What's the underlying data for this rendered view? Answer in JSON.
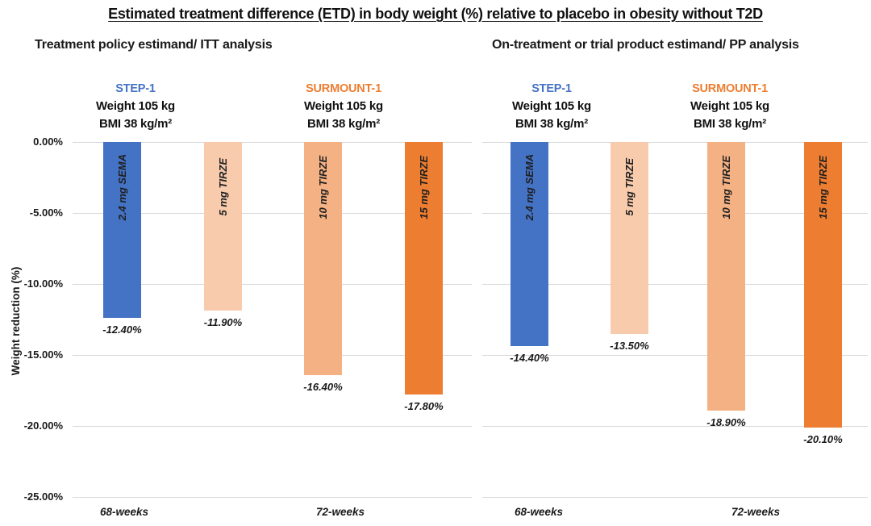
{
  "title": "Estimated treatment difference (ETD) in body weight (%) relative to placebo in obesity without T2D",
  "colors": {
    "step1_blue": "#4472C4",
    "surmount_orange": "#ED7D31",
    "tirze_5mg": "#F8CBAD",
    "tirze_10mg": "#F4B183",
    "tirze_15mg": "#ED7D31",
    "gridline": "#D9D9D9"
  },
  "y_axis": {
    "label": "Weight reduction (%)",
    "ticks": [
      {
        "label": "0.00%",
        "value": 0
      },
      {
        "label": "-5.00%",
        "value": -5
      },
      {
        "label": "-10.00%",
        "value": -10
      },
      {
        "label": "-15.00%",
        "value": -15
      },
      {
        "label": "-20.00%",
        "value": -20
      },
      {
        "label": "-25.00%",
        "value": -25
      }
    ]
  },
  "chart_data": [
    {
      "type": "bar",
      "panel": "ITT",
      "title": "Treatment policy estimand/ ITT analysis",
      "ylabel": "Weight reduction (%)",
      "ylim": [
        -25,
        0
      ],
      "categories": [
        "68-weeks",
        "72-weeks"
      ],
      "groups": [
        {
          "name": "STEP-1",
          "name_color": "#4472C4",
          "weight": "Weight 105 kg",
          "bmi": "BMI 38 kg/m²"
        },
        {
          "name": "SURMOUNT-1",
          "name_color": "#ED7D31",
          "weight": "Weight 105 kg",
          "bmi": "BMI 38 kg/m²"
        }
      ],
      "bars": [
        {
          "label": "2.4 mg SEMA",
          "value": -12.4,
          "value_label": "-12.40%",
          "color": "#4472C4",
          "group": "STEP-1",
          "category": "68-weeks"
        },
        {
          "label": "5 mg TIRZE",
          "value": -11.9,
          "value_label": "-11.90%",
          "color": "#F8CBAD",
          "group": "SURMOUNT-1",
          "category": "72-weeks"
        },
        {
          "label": "10 mg TIRZE",
          "value": -16.4,
          "value_label": "-16.40%",
          "color": "#F4B183",
          "group": "SURMOUNT-1",
          "category": "72-weeks"
        },
        {
          "label": "15 mg TIRZE",
          "value": -17.8,
          "value_label": "-17.80%",
          "color": "#ED7D31",
          "group": "SURMOUNT-1",
          "category": "72-weeks"
        }
      ]
    },
    {
      "type": "bar",
      "panel": "PP",
      "title": "On-treatment or trial product estimand/ PP analysis",
      "ylabel": "Weight reduction (%)",
      "ylim": [
        -25,
        0
      ],
      "categories": [
        "68-weeks",
        "72-weeks"
      ],
      "groups": [
        {
          "name": "STEP-1",
          "name_color": "#4472C4",
          "weight": "Weight 105 kg",
          "bmi": "BMI 38 kg/m²"
        },
        {
          "name": "SURMOUNT-1",
          "name_color": "#ED7D31",
          "weight": "Weight 105 kg",
          "bmi": "BMI 38 kg/m²"
        }
      ],
      "bars": [
        {
          "label": "2.4 mg SEMA",
          "value": -14.4,
          "value_label": "-14.40%",
          "color": "#4472C4",
          "group": "STEP-1",
          "category": "68-weeks"
        },
        {
          "label": "5 mg TIRZE",
          "value": -13.5,
          "value_label": "-13.50%",
          "color": "#F8CBAD",
          "group": "SURMOUNT-1",
          "category": "72-weeks"
        },
        {
          "label": "10 mg TIRZE",
          "value": -18.9,
          "value_label": "-18.90%",
          "color": "#F4B183",
          "group": "SURMOUNT-1",
          "category": "72-weeks"
        },
        {
          "label": "15 mg TIRZE",
          "value": -20.1,
          "value_label": "-20.10%",
          "color": "#ED7D31",
          "group": "SURMOUNT-1",
          "category": "72-weeks"
        }
      ]
    }
  ]
}
